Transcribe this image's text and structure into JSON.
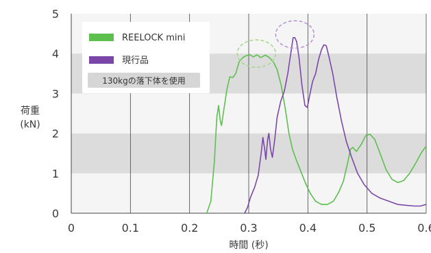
{
  "colors": {
    "background": "#ffffff",
    "plot_background": "#f5f5f5",
    "band": "#dcdcdc",
    "gridline": "#444444",
    "reelock": "#5cbf4e",
    "current": "#7a47a8",
    "note_box": "#d6d6d6"
  },
  "chart_data": {
    "type": "line",
    "title": "",
    "xlabel": "時間 (秒)",
    "ylabel": [
      "荷重",
      "(kN)"
    ],
    "xlim": [
      0,
      0.6
    ],
    "ylim": [
      0,
      5
    ],
    "x_ticks": [
      "0",
      "0.1",
      "0.2",
      "0.3",
      "0.4",
      "0.5",
      "0.6"
    ],
    "y_ticks": [
      "0",
      "1",
      "2",
      "3",
      "4",
      "5"
    ],
    "x_tick_values": [
      0,
      0.1,
      0.2,
      0.3,
      0.4,
      0.5,
      0.6
    ],
    "y_tick_values": [
      0,
      1,
      2,
      3,
      4,
      5
    ],
    "bands": [
      [
        1,
        2
      ],
      [
        3,
        4
      ]
    ],
    "grid": "vertical",
    "legend_position": "top-left",
    "note": "130kgの落下体を使用",
    "series": [
      {
        "name": "REELOCK mini",
        "color": "#5cbf4e",
        "points": [
          [
            0.229,
            0
          ],
          [
            0.236,
            0.3
          ],
          [
            0.242,
            1.3
          ],
          [
            0.246,
            2.4
          ],
          [
            0.249,
            2.7
          ],
          [
            0.252,
            2.3
          ],
          [
            0.254,
            2.2
          ],
          [
            0.258,
            2.6
          ],
          [
            0.263,
            3.1
          ],
          [
            0.268,
            3.42
          ],
          [
            0.273,
            3.4
          ],
          [
            0.278,
            3.5
          ],
          [
            0.284,
            3.8
          ],
          [
            0.29,
            3.9
          ],
          [
            0.296,
            3.95
          ],
          [
            0.302,
            3.97
          ],
          [
            0.308,
            3.92
          ],
          [
            0.314,
            3.97
          ],
          [
            0.32,
            3.9
          ],
          [
            0.328,
            3.96
          ],
          [
            0.335,
            3.9
          ],
          [
            0.342,
            3.78
          ],
          [
            0.348,
            3.6
          ],
          [
            0.355,
            3.2
          ],
          [
            0.362,
            2.6
          ],
          [
            0.368,
            2.0
          ],
          [
            0.374,
            1.6
          ],
          [
            0.38,
            1.35
          ],
          [
            0.388,
            1.05
          ],
          [
            0.396,
            0.75
          ],
          [
            0.404,
            0.5
          ],
          [
            0.413,
            0.3
          ],
          [
            0.423,
            0.22
          ],
          [
            0.433,
            0.22
          ],
          [
            0.443,
            0.3
          ],
          [
            0.452,
            0.52
          ],
          [
            0.46,
            0.8
          ],
          [
            0.467,
            1.25
          ],
          [
            0.472,
            1.6
          ],
          [
            0.476,
            1.65
          ],
          [
            0.482,
            1.55
          ],
          [
            0.49,
            1.72
          ],
          [
            0.498,
            1.95
          ],
          [
            0.505,
            1.98
          ],
          [
            0.513,
            1.85
          ],
          [
            0.522,
            1.5
          ],
          [
            0.532,
            1.1
          ],
          [
            0.542,
            0.85
          ],
          [
            0.552,
            0.77
          ],
          [
            0.562,
            0.82
          ],
          [
            0.572,
            1.0
          ],
          [
            0.582,
            1.25
          ],
          [
            0.592,
            1.52
          ],
          [
            0.6,
            1.68
          ]
        ]
      },
      {
        "name": "現行品",
        "color": "#7a47a8",
        "points": [
          [
            0.293,
            0
          ],
          [
            0.298,
            0.15
          ],
          [
            0.303,
            0.4
          ],
          [
            0.31,
            0.65
          ],
          [
            0.316,
            0.95
          ],
          [
            0.321,
            1.5
          ],
          [
            0.324,
            1.9
          ],
          [
            0.327,
            1.6
          ],
          [
            0.329,
            1.35
          ],
          [
            0.332,
            1.85
          ],
          [
            0.334,
            2.0
          ],
          [
            0.337,
            1.6
          ],
          [
            0.34,
            1.4
          ],
          [
            0.344,
            1.85
          ],
          [
            0.348,
            2.4
          ],
          [
            0.354,
            2.8
          ],
          [
            0.36,
            3.05
          ],
          [
            0.366,
            3.5
          ],
          [
            0.371,
            4.0
          ],
          [
            0.375,
            4.4
          ],
          [
            0.378,
            4.4
          ],
          [
            0.381,
            4.3
          ],
          [
            0.385,
            3.9
          ],
          [
            0.39,
            3.2
          ],
          [
            0.395,
            2.7
          ],
          [
            0.399,
            2.65
          ],
          [
            0.403,
            2.95
          ],
          [
            0.408,
            3.3
          ],
          [
            0.413,
            3.5
          ],
          [
            0.418,
            3.85
          ],
          [
            0.423,
            4.1
          ],
          [
            0.427,
            4.22
          ],
          [
            0.431,
            4.2
          ],
          [
            0.436,
            3.9
          ],
          [
            0.442,
            3.5
          ],
          [
            0.449,
            2.9
          ],
          [
            0.457,
            2.3
          ],
          [
            0.465,
            1.8
          ],
          [
            0.474,
            1.4
          ],
          [
            0.484,
            1.0
          ],
          [
            0.495,
            0.72
          ],
          [
            0.508,
            0.5
          ],
          [
            0.522,
            0.38
          ],
          [
            0.537,
            0.3
          ],
          [
            0.552,
            0.22
          ],
          [
            0.566,
            0.2
          ],
          [
            0.58,
            0.18
          ],
          [
            0.59,
            0.18
          ],
          [
            0.6,
            0.22
          ]
        ]
      }
    ],
    "peak_highlights": [
      {
        "series": "REELOCK mini",
        "center": [
          0.313,
          4.0
        ],
        "color": "#a8d890"
      },
      {
        "series": "現行品",
        "center": [
          0.378,
          4.48
        ],
        "color": "#b896d6"
      }
    ]
  }
}
